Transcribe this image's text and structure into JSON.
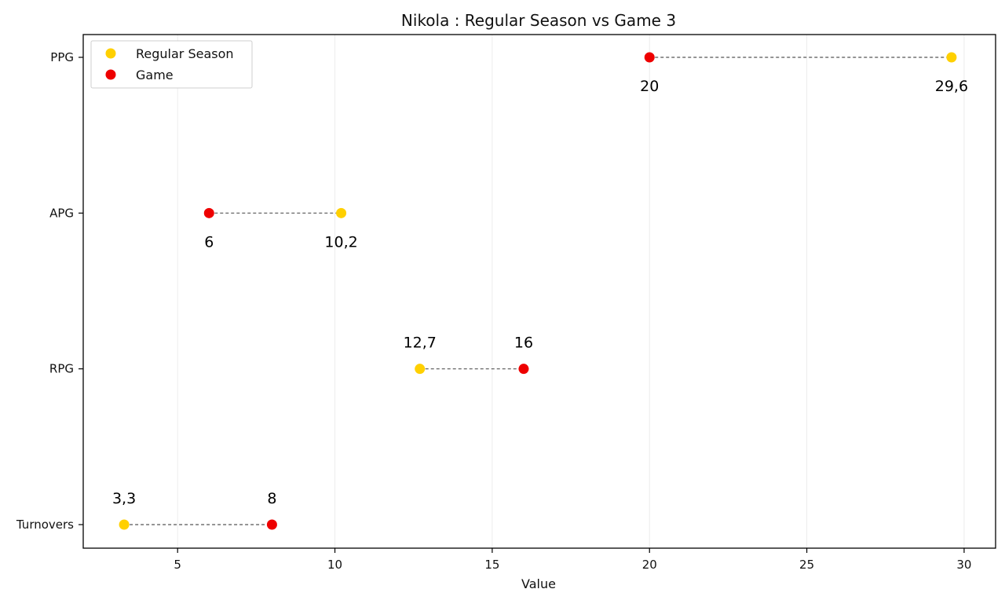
{
  "chart_data": {
    "type": "dumbbell",
    "title": "Nikola : Regular Season vs Game 3",
    "xlabel": "Value",
    "ylabel": "",
    "xlim": [
      2,
      31
    ],
    "xticks": [
      5,
      10,
      15,
      20,
      25,
      30
    ],
    "grid": "vertical",
    "legend_position": "top-left",
    "categories": [
      "PPG",
      "APG",
      "RPG",
      "Turnovers"
    ],
    "series": [
      {
        "name": "Regular Season",
        "color": "#FFD000",
        "values": [
          29.6,
          10.2,
          12.7,
          3.3
        ],
        "labels": [
          "29,6",
          "10,2",
          "12,7",
          "3,3"
        ]
      },
      {
        "name": "Game",
        "color": "#EE0000",
        "values": [
          20,
          6,
          16,
          8
        ],
        "labels": [
          "20",
          "6",
          "16",
          "8"
        ]
      }
    ]
  }
}
